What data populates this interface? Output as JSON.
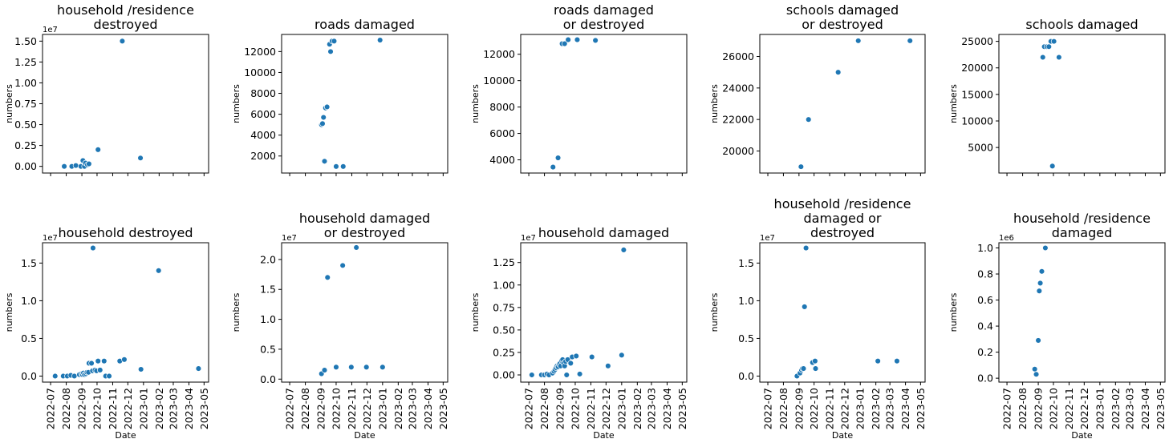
{
  "chart_data": [
    {
      "type": "scatter",
      "title": "household /residence\ndestroyed",
      "ylabel": "numbers",
      "xlabel": "",
      "offset": "1e7",
      "yticks": [
        0,
        0.25,
        0.5,
        0.75,
        1.0,
        1.25,
        1.5
      ],
      "ytick_labels": [
        "0.00",
        "0.25",
        "0.50",
        "0.75",
        "1.00",
        "1.25",
        "1.50"
      ],
      "ylim": [
        -0.08,
        1.58
      ],
      "points": [
        [
          "2022-07-28",
          0.0
        ],
        [
          "2022-08-12",
          0.0
        ],
        [
          "2022-08-20",
          0.01
        ],
        [
          "2022-08-30",
          0.0
        ],
        [
          "2022-09-03",
          0.07
        ],
        [
          "2022-09-06",
          0.0
        ],
        [
          "2022-09-08",
          0.04
        ],
        [
          "2022-09-12",
          0.02
        ],
        [
          "2022-09-15",
          0.03
        ],
        [
          "2022-10-03",
          0.2
        ],
        [
          "2022-11-20",
          1.5
        ],
        [
          "2022-12-26",
          0.1
        ]
      ]
    },
    {
      "type": "scatter",
      "title": "roads damaged",
      "ylabel": "numbers",
      "xlabel": "",
      "offset": "",
      "yticks": [
        2000,
        4000,
        6000,
        8000,
        10000,
        12000
      ],
      "ytick_labels": [
        "2000",
        "4000",
        "6000",
        "8000",
        "10000",
        "12000"
      ],
      "ylim": [
        370,
        13640
      ],
      "points": [
        [
          "2022-09-02",
          5000
        ],
        [
          "2022-09-04",
          5100
        ],
        [
          "2022-09-06",
          5700
        ],
        [
          "2022-09-08",
          1500
        ],
        [
          "2022-09-10",
          6600
        ],
        [
          "2022-09-13",
          6700
        ],
        [
          "2022-09-18",
          12700
        ],
        [
          "2022-09-20",
          12000
        ],
        [
          "2022-09-23",
          13000
        ],
        [
          "2022-09-27",
          13000
        ],
        [
          "2022-10-01",
          1000
        ],
        [
          "2022-10-15",
          1000
        ],
        [
          "2022-12-27",
          13100
        ]
      ]
    },
    {
      "type": "scatter",
      "title": "roads damaged\nor destroyed",
      "ylabel": "numbers",
      "xlabel": "",
      "offset": "",
      "yticks": [
        4000,
        6000,
        8000,
        10000,
        12000
      ],
      "ytick_labels": [
        "4000",
        "6000",
        "8000",
        "10000",
        "12000"
      ],
      "ylim": [
        3000,
        13500
      ],
      "points": [
        [
          "2022-08-18",
          3450
        ],
        [
          "2022-08-28",
          4150
        ],
        [
          "2022-09-05",
          12800
        ],
        [
          "2022-09-10",
          12800
        ],
        [
          "2022-09-17",
          13100
        ],
        [
          "2022-10-05",
          13100
        ],
        [
          "2022-11-10",
          13050
        ]
      ]
    },
    {
      "type": "scatter",
      "title": "schools damaged\nor destroyed",
      "ylabel": "numbers",
      "xlabel": "",
      "offset": "",
      "yticks": [
        20000,
        22000,
        24000,
        26000
      ],
      "ytick_labels": [
        "20000",
        "22000",
        "24000",
        "26000"
      ],
      "ylim": [
        18600,
        27400
      ],
      "points": [
        [
          "2022-09-05",
          19000
        ],
        [
          "2022-09-20",
          22000
        ],
        [
          "2022-11-18",
          25000
        ],
        [
          "2022-12-28",
          27000
        ],
        [
          "2023-04-10",
          27000
        ]
      ]
    },
    {
      "type": "scatter",
      "title": "schools damaged",
      "ylabel": "numbers",
      "xlabel": "",
      "offset": "",
      "yticks": [
        5000,
        10000,
        15000,
        20000,
        25000
      ],
      "ytick_labels": [
        "5000",
        "10000",
        "15000",
        "20000",
        "25000"
      ],
      "ylim": [
        190,
        26300
      ],
      "points": [
        [
          "2022-09-10",
          22000
        ],
        [
          "2022-09-13",
          24000
        ],
        [
          "2022-09-18",
          24000
        ],
        [
          "2022-09-22",
          24000
        ],
        [
          "2022-09-26",
          25000
        ],
        [
          "2022-09-29",
          1500
        ],
        [
          "2022-10-02",
          25000
        ],
        [
          "2022-10-12",
          22000
        ]
      ]
    },
    {
      "type": "scatter",
      "title": "household destroyed",
      "ylabel": "numbers",
      "xlabel": "Date",
      "offset": "1e7",
      "yticks": [
        0,
        0.5,
        1.0,
        1.5
      ],
      "ytick_labels": [
        "0.0",
        "0.5",
        "1.0",
        "1.5"
      ],
      "ylim": [
        -0.08,
        1.77
      ],
      "points": [
        [
          "2022-07-10",
          0.0
        ],
        [
          "2022-07-26",
          0.0
        ],
        [
          "2022-08-03",
          0.0
        ],
        [
          "2022-08-10",
          0.01
        ],
        [
          "2022-08-17",
          0.0
        ],
        [
          "2022-08-27",
          0.02
        ],
        [
          "2022-08-31",
          0.03
        ],
        [
          "2022-09-02",
          0.02
        ],
        [
          "2022-09-04",
          0.04
        ],
        [
          "2022-09-06",
          0.02
        ],
        [
          "2022-09-09",
          0.03
        ],
        [
          "2022-09-11",
          0.05
        ],
        [
          "2022-09-14",
          0.05
        ],
        [
          "2022-09-15",
          0.17
        ],
        [
          "2022-09-20",
          0.17
        ],
        [
          "2022-09-22",
          0.07
        ],
        [
          "2022-09-27",
          0.08
        ],
        [
          "2022-09-30",
          0.07
        ],
        [
          "2022-10-03",
          0.2
        ],
        [
          "2022-10-07",
          0.08
        ],
        [
          "2022-10-15",
          0.2
        ],
        [
          "2022-10-18",
          0.0
        ],
        [
          "2022-10-25",
          0.0
        ],
        [
          "2022-11-15",
          0.2
        ],
        [
          "2022-11-24",
          0.22
        ],
        [
          "2022-09-23",
          1.7
        ],
        [
          "2022-12-27",
          0.09
        ],
        [
          "2023-01-31",
          1.4
        ],
        [
          "2023-04-20",
          0.1
        ]
      ]
    },
    {
      "type": "scatter",
      "title": "household damaged\nor destroyed",
      "ylabel": "numbers",
      "xlabel": "Date",
      "offset": "1e7",
      "yticks": [
        0,
        0.5,
        1.0,
        1.5,
        2.0
      ],
      "ytick_labels": [
        "0.0",
        "0.5",
        "1.0",
        "1.5",
        "2.0"
      ],
      "ylim": [
        -0.05,
        2.28
      ],
      "points": [
        [
          "2022-09-02",
          0.09
        ],
        [
          "2022-09-08",
          0.15
        ],
        [
          "2022-09-14",
          1.7
        ],
        [
          "2022-10-01",
          0.2
        ],
        [
          "2022-10-14",
          1.9
        ],
        [
          "2022-10-31",
          0.2
        ],
        [
          "2022-11-10",
          2.2
        ],
        [
          "2022-11-30",
          0.2
        ],
        [
          "2023-01-01",
          0.2
        ]
      ]
    },
    {
      "type": "scatter",
      "title": "household damaged",
      "ylabel": "numbers",
      "xlabel": "Date",
      "offset": "1e7",
      "yticks": [
        0,
        0.25,
        0.5,
        0.75,
        1.0,
        1.25
      ],
      "ytick_labels": [
        "0.00",
        "0.25",
        "0.50",
        "0.75",
        "1.00",
        "1.25"
      ],
      "ylim": [
        -0.08,
        1.47
      ],
      "points": [
        [
          "2022-07-07",
          0.0
        ],
        [
          "2022-07-26",
          0.0
        ],
        [
          "2022-08-01",
          0.0
        ],
        [
          "2022-08-06",
          0.01
        ],
        [
          "2022-08-10",
          0.0
        ],
        [
          "2022-08-17",
          0.02
        ],
        [
          "2022-08-20",
          0.04
        ],
        [
          "2022-08-22",
          0.06
        ],
        [
          "2022-08-24",
          0.08
        ],
        [
          "2022-08-26",
          0.1
        ],
        [
          "2022-08-28",
          0.09
        ],
        [
          "2022-08-30",
          0.12
        ],
        [
          "2022-09-01",
          0.13
        ],
        [
          "2022-09-02",
          0.1
        ],
        [
          "2022-09-04",
          0.16
        ],
        [
          "2022-09-06",
          0.17
        ],
        [
          "2022-09-08",
          0.13
        ],
        [
          "2022-09-10",
          0.1
        ],
        [
          "2022-09-12",
          0.15
        ],
        [
          "2022-09-14",
          0.0
        ],
        [
          "2022-09-16",
          0.17
        ],
        [
          "2022-09-22",
          0.13
        ],
        [
          "2022-09-25",
          0.2
        ],
        [
          "2022-10-03",
          0.21
        ],
        [
          "2022-10-10",
          0.01
        ],
        [
          "2022-11-03",
          0.2
        ],
        [
          "2022-12-05",
          0.1
        ],
        [
          "2023-01-01",
          0.22
        ],
        [
          "2023-01-05",
          1.39
        ]
      ]
    },
    {
      "type": "scatter",
      "title": "household /residence\ndamaged or\ndestroyed",
      "ylabel": "numbers",
      "xlabel": "Date",
      "offset": "1e7",
      "yticks": [
        0,
        0.5,
        1.0,
        1.5
      ],
      "ytick_labels": [
        "0.0",
        "0.5",
        "1.0",
        "1.5"
      ],
      "ylim": [
        -0.08,
        1.77
      ],
      "points": [
        [
          "2022-08-28",
          0.0
        ],
        [
          "2022-09-03",
          0.04
        ],
        [
          "2022-09-06",
          0.08
        ],
        [
          "2022-09-08",
          0.1
        ],
        [
          "2022-09-10",
          0.1
        ],
        [
          "2022-09-12",
          0.92
        ],
        [
          "2022-09-15",
          1.7
        ],
        [
          "2022-09-28",
          0.18
        ],
        [
          "2022-10-03",
          0.2
        ],
        [
          "2022-10-04",
          0.1
        ],
        [
          "2023-02-05",
          0.2
        ],
        [
          "2023-03-15",
          0.2
        ]
      ]
    },
    {
      "type": "scatter",
      "title": "household /residence\ndamaged",
      "ylabel": "numbers",
      "xlabel": "Date",
      "offset": "1e6",
      "yticks": [
        0.0,
        0.2,
        0.4,
        0.6,
        0.8,
        1.0
      ],
      "ytick_labels": [
        "0.0",
        "0.2",
        "0.4",
        "0.6",
        "0.8",
        "1.0"
      ],
      "ylim": [
        -0.03,
        1.04
      ],
      "points": [
        [
          "2022-08-25",
          0.07
        ],
        [
          "2022-08-28",
          0.03
        ],
        [
          "2022-09-01",
          0.29
        ],
        [
          "2022-09-03",
          0.67
        ],
        [
          "2022-09-05",
          0.73
        ],
        [
          "2022-09-08",
          0.82
        ],
        [
          "2022-09-15",
          1.0
        ]
      ]
    }
  ],
  "date_ticks": [
    "2022-07",
    "2022-08",
    "2022-09",
    "2022-10",
    "2022-11",
    "2022-12",
    "2023-01",
    "2023-02",
    "2023-03",
    "2023-04",
    "2023-05"
  ]
}
